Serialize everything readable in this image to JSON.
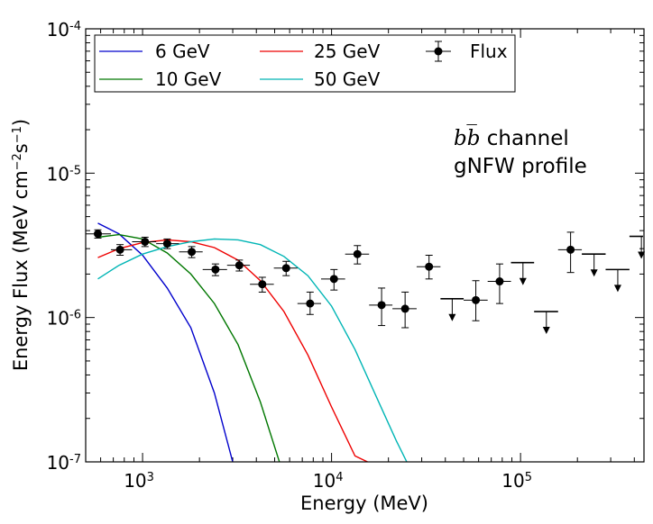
{
  "chart_data": {
    "type": "line",
    "title": "",
    "xlabel": "Energy (MeV)",
    "ylabel": "Energy Flux (MeV cm$^{-2}$s$^{-1}$)",
    "ylabel_parts": {
      "a": "Energy Flux (MeV cm",
      "b": "−2",
      "c": "s",
      "d": "−1",
      "e": ")"
    },
    "x_scale": "log",
    "y_scale": "log",
    "xlim": [
      500,
      450000
    ],
    "ylim": [
      1e-07,
      0.0001
    ],
    "x_ticks": [
      {
        "value": 1000,
        "base": "10",
        "exp": "3"
      },
      {
        "value": 10000,
        "base": "10",
        "exp": "4"
      },
      {
        "value": 100000,
        "base": "10",
        "exp": "5"
      }
    ],
    "y_ticks": [
      {
        "value": 1e-07,
        "base": "10",
        "exp": "-7"
      },
      {
        "value": 1e-06,
        "base": "10",
        "exp": "-6"
      },
      {
        "value": 1e-05,
        "base": "10",
        "exp": "-5"
      },
      {
        "value": 0.0001,
        "base": "10",
        "exp": "-4"
      }
    ],
    "annotation": {
      "italic": "bb̅",
      "line1_rest": " channel",
      "line2": "gNFW profile"
    },
    "legend": {
      "position": "top-left"
    },
    "series": [
      {
        "name": "6 GeV",
        "color": "#0000cc",
        "x": [
          580,
          750,
          1000,
          1350,
          1800,
          2400,
          3000
        ],
        "y": [
          4.5e-06,
          3.8e-06,
          2.7e-06,
          1.6e-06,
          8.5e-07,
          3e-07,
          1e-07
        ]
      },
      {
        "name": "10 GeV",
        "color": "#007700",
        "x": [
          580,
          750,
          1000,
          1350,
          1800,
          2400,
          3200,
          4200,
          5300
        ],
        "y": [
          3.6e-06,
          3.75e-06,
          3.5e-06,
          2.8e-06,
          2e-06,
          1.25e-06,
          6.5e-07,
          2.6e-07,
          1e-07
        ]
      },
      {
        "name": "25 GeV",
        "color": "#ee0000",
        "x": [
          580,
          750,
          1000,
          1350,
          1800,
          2400,
          3200,
          4200,
          5600,
          7500,
          10000,
          13300,
          15500
        ],
        "y": [
          2.6e-06,
          3e-06,
          3.3e-06,
          3.45e-06,
          3.35e-06,
          3.05e-06,
          2.5e-06,
          1.8e-06,
          1.1e-06,
          5.5e-07,
          2.4e-07,
          1.1e-07,
          1e-07
        ]
      },
      {
        "name": "50 GeV",
        "color": "#00b5b5",
        "x": [
          580,
          750,
          1000,
          1350,
          1800,
          2400,
          3200,
          4200,
          5600,
          7500,
          10000,
          13300,
          18000,
          22000,
          25000
        ],
        "y": [
          1.85e-06,
          2.3e-06,
          2.75e-06,
          3.1e-06,
          3.35e-06,
          3.5e-06,
          3.45e-06,
          3.2e-06,
          2.65e-06,
          1.95e-06,
          1.2e-06,
          6e-07,
          2.5e-07,
          1.4e-07,
          1e-07
        ]
      }
    ],
    "flux": {
      "name": "Flux",
      "color": "#000000",
      "points": [
        {
          "x": 580,
          "xlo": 500,
          "xhi": 680,
          "y": 3.8e-06,
          "ylo": 3.55e-06,
          "yhi": 4.05e-06
        },
        {
          "x": 760,
          "xlo": 680,
          "xhi": 880,
          "y": 2.95e-06,
          "ylo": 2.7e-06,
          "yhi": 3.2e-06
        },
        {
          "x": 1030,
          "xlo": 880,
          "xhi": 1180,
          "y": 3.35e-06,
          "ylo": 3.1e-06,
          "yhi": 3.6e-06
        },
        {
          "x": 1350,
          "xlo": 1180,
          "xhi": 1560,
          "y": 3.25e-06,
          "ylo": 3e-06,
          "yhi": 3.5e-06
        },
        {
          "x": 1820,
          "xlo": 1560,
          "xhi": 2080,
          "y": 2.85e-06,
          "ylo": 2.6e-06,
          "yhi": 3.1e-06
        },
        {
          "x": 2430,
          "xlo": 2080,
          "xhi": 2800,
          "y": 2.15e-06,
          "ylo": 1.95e-06,
          "yhi": 2.35e-06
        },
        {
          "x": 3250,
          "xlo": 2800,
          "xhi": 3700,
          "y": 2.3e-06,
          "ylo": 2.1e-06,
          "yhi": 2.5e-06
        },
        {
          "x": 4300,
          "xlo": 3700,
          "xhi": 4950,
          "y": 1.7e-06,
          "ylo": 1.5e-06,
          "yhi": 1.9e-06
        },
        {
          "x": 5750,
          "xlo": 4950,
          "xhi": 6600,
          "y": 2.2e-06,
          "ylo": 1.95e-06,
          "yhi": 2.45e-06
        },
        {
          "x": 7700,
          "xlo": 6600,
          "xhi": 8800,
          "y": 1.25e-06,
          "ylo": 1.05e-06,
          "yhi": 1.5e-06
        },
        {
          "x": 10300,
          "xlo": 8800,
          "xhi": 11800,
          "y": 1.85e-06,
          "ylo": 1.55e-06,
          "yhi": 2.15e-06
        },
        {
          "x": 13700,
          "xlo": 11800,
          "xhi": 15800,
          "y": 2.75e-06,
          "ylo": 2.35e-06,
          "yhi": 3.15e-06
        },
        {
          "x": 18400,
          "xlo": 15800,
          "xhi": 21000,
          "y": 1.22e-06,
          "ylo": 8.8e-07,
          "yhi": 1.6e-06
        },
        {
          "x": 24500,
          "xlo": 21000,
          "xhi": 28200,
          "y": 1.15e-06,
          "ylo": 8.5e-07,
          "yhi": 1.5e-06
        },
        {
          "x": 32800,
          "xlo": 28200,
          "xhi": 37700,
          "y": 2.25e-06,
          "ylo": 1.85e-06,
          "yhi": 2.7e-06
        },
        {
          "x": 58000,
          "xlo": 50000,
          "xhi": 67000,
          "y": 1.32e-06,
          "ylo": 9.5e-07,
          "yhi": 1.8e-06
        },
        {
          "x": 77500,
          "xlo": 67000,
          "xhi": 89000,
          "y": 1.78e-06,
          "ylo": 1.25e-06,
          "yhi": 2.35e-06
        },
        {
          "x": 184000,
          "xlo": 158000,
          "xhi": 211000,
          "y": 2.95e-06,
          "ylo": 2.05e-06,
          "yhi": 3.9e-06
        }
      ],
      "upper_limits": [
        {
          "x": 43500,
          "xlo": 37700,
          "xhi": 50000,
          "y": 1.35e-06
        },
        {
          "x": 103000,
          "xlo": 89000,
          "xhi": 118000,
          "y": 2.4e-06
        },
        {
          "x": 137000,
          "xlo": 118000,
          "xhi": 158000,
          "y": 1.1e-06
        },
        {
          "x": 245000,
          "xlo": 211000,
          "xhi": 282000,
          "y": 2.75e-06
        },
        {
          "x": 327000,
          "xlo": 282000,
          "xhi": 377000,
          "y": 2.15e-06
        },
        {
          "x": 436000,
          "xlo": 377000,
          "xhi": 450000,
          "y": 3.65e-06
        }
      ]
    }
  }
}
